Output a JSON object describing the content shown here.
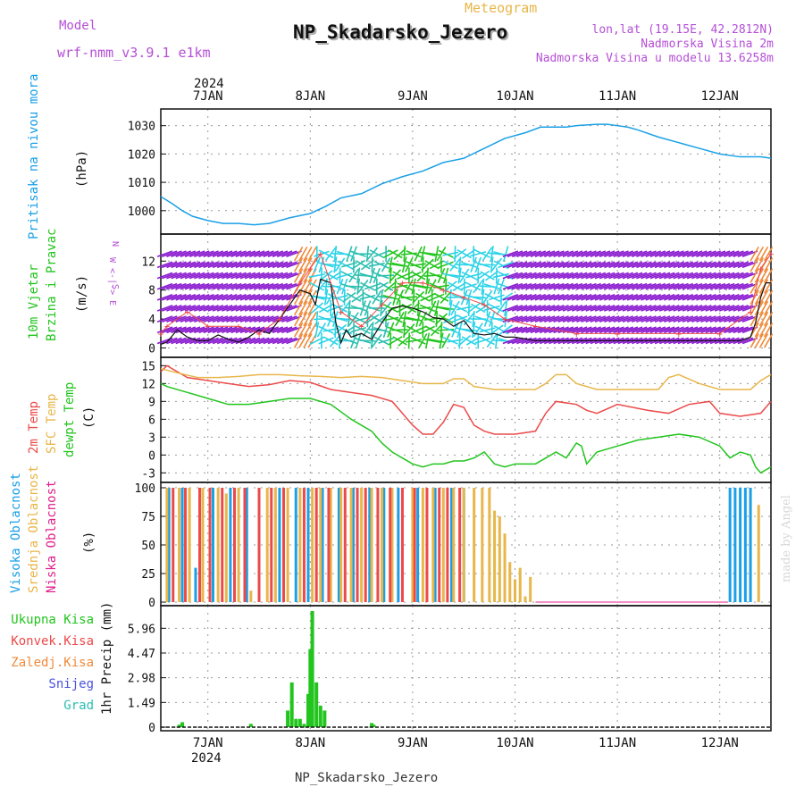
{
  "header": {
    "model_label": "Model",
    "model_value": "wrf-nmm_v3.9.1 e1km",
    "meteogram": "Meteogram",
    "station": "NP_Skadarsko_Jezero",
    "coords": "lon,lat (19.15E, 42.2812N)",
    "alt": "Nadmorska Visina 2m",
    "model_alt": "Nadmorska Visina u modelu 13.6258m",
    "year": "2024",
    "footer": "NP_Skadarsko_Jezero",
    "credit": "made by Angel"
  },
  "colors": {
    "purple": "#b44fd6",
    "gold": "#e8b64a",
    "pressure": "#1aa0e6",
    "green": "#22c51e",
    "red": "#ec4a4a",
    "orange": "#f08a3a",
    "blue": "#4b52e0",
    "cyan": "#2bbfb0",
    "magenta": "#e0208a",
    "darkpurple": "#8a1ad0"
  },
  "chart_data": [
    {
      "id": "pressure",
      "type": "line",
      "ylabel": [
        "Pritisak na nivou mora",
        "(hPa)"
      ],
      "yticks": [
        1000,
        1010,
        1020,
        1030
      ],
      "ylim": [
        993,
        1034
      ],
      "x_categories": [
        "7JAN",
        "8JAN",
        "9JAN",
        "10JAN",
        "11JAN",
        "12JAN"
      ],
      "xlim": [
        6.54,
        12.5
      ],
      "series": [
        {
          "x": [
            6.54,
            6.65,
            6.75,
            6.85,
            7.0,
            7.15,
            7.3,
            7.45,
            7.6,
            7.8,
            8.0,
            8.15,
            8.3,
            8.5,
            8.7,
            8.9,
            9.1,
            9.3,
            9.5,
            9.7,
            9.9,
            10.1,
            10.25,
            10.4,
            10.5,
            10.6,
            10.8,
            10.9,
            11.0,
            11.1,
            11.2,
            11.4,
            11.6,
            11.8,
            12.0,
            12.2,
            12.3,
            12.4,
            12.5
          ],
          "y": [
            1005,
            1002.5,
            1000,
            998,
            996.5,
            995.5,
            995.5,
            995,
            995.5,
            997.5,
            999,
            1001.5,
            1004.5,
            1006,
            1009.5,
            1012,
            1014,
            1017,
            1018.5,
            1022,
            1025.5,
            1027.5,
            1029.5,
            1029.5,
            1029.5,
            1030,
            1030.5,
            1030.5,
            1030,
            1029.5,
            1028.5,
            1026,
            1024,
            1022,
            1020,
            1019,
            1019,
            1019,
            1018.5
          ]
        }
      ]
    },
    {
      "id": "wind",
      "type": "line",
      "ylabel": [
        "10m Vjetar",
        "Brzina i Pravac",
        "(m/s)"
      ],
      "yticks": [
        0,
        4,
        8,
        12
      ],
      "ylim": [
        -0.8,
        15
      ],
      "legend_compass": "N",
      "legend_ew": "W <-|-> E",
      "legend_s": "S",
      "series": [
        {
          "name": "speed",
          "x": [
            6.54,
            6.6,
            6.7,
            6.8,
            6.9,
            7.0,
            7.1,
            7.2,
            7.3,
            7.4,
            7.5,
            7.6,
            7.7,
            7.8,
            7.9,
            8.0,
            8.05,
            8.1,
            8.2,
            8.25,
            8.3,
            8.35,
            8.4,
            8.5,
            8.6,
            8.7,
            8.8,
            8.9,
            9.0,
            9.1,
            9.2,
            9.3,
            9.4,
            9.5,
            9.6,
            9.7,
            9.8,
            9.9,
            10.0,
            10.2,
            10.5,
            11.0,
            11.5,
            12.0,
            12.2,
            12.3,
            12.35,
            12.4,
            12.45,
            12.5
          ],
          "y": [
            0.5,
            0.8,
            2.5,
            1.5,
            1.0,
            1.0,
            1.8,
            1.2,
            0.8,
            1.5,
            2.5,
            2.0,
            4.0,
            6.0,
            8.0,
            7.5,
            6.0,
            9.5,
            9.0,
            3.5,
            0.7,
            2.5,
            1.5,
            2.0,
            1.2,
            3.5,
            5.5,
            5.8,
            5.5,
            5.0,
            4.2,
            4.0,
            3.0,
            3.8,
            2.0,
            1.8,
            2.0,
            1.5,
            1.5,
            1.0,
            1.0,
            1.0,
            1.0,
            1.0,
            1.0,
            1.5,
            3.5,
            7.0,
            9.0,
            9.0
          ]
        },
        {
          "name": "gust",
          "x": [
            6.54,
            6.6,
            6.8,
            7.0,
            7.3,
            7.5,
            7.7,
            7.9,
            8.0,
            8.1,
            8.3,
            8.5,
            8.7,
            8.9,
            9.1,
            9.3,
            9.5,
            9.7,
            9.9,
            10.2,
            10.6,
            11.0,
            11.6,
            12.0,
            12.3,
            12.4,
            12.5
          ],
          "y": [
            2,
            3,
            5,
            3,
            3,
            2,
            4,
            9,
            11,
            13,
            5,
            3,
            6,
            9,
            9,
            8,
            7,
            6,
            4,
            3,
            2,
            2,
            2,
            2,
            5,
            11,
            13
          ]
        }
      ]
    },
    {
      "id": "temperature",
      "type": "line",
      "ylabel": [
        "2m Temp",
        "SFC Temp",
        "dewpt Temp",
        "(C)"
      ],
      "yticks": [
        -3,
        0,
        3,
        6,
        9,
        12,
        15
      ],
      "ylim": [
        -4,
        15.5
      ],
      "series": [
        {
          "name": "2m Temp",
          "x": [
            6.54,
            6.6,
            6.7,
            6.8,
            7.0,
            7.2,
            7.4,
            7.6,
            7.8,
            8.0,
            8.2,
            8.4,
            8.6,
            8.8,
            8.9,
            9.0,
            9.1,
            9.2,
            9.3,
            9.4,
            9.5,
            9.6,
            9.7,
            9.8,
            9.9,
            10.0,
            10.2,
            10.3,
            10.4,
            10.6,
            10.7,
            10.8,
            11.0,
            11.3,
            11.5,
            11.7,
            11.9,
            12.0,
            12.2,
            12.4,
            12.5
          ],
          "y": [
            14,
            15,
            14,
            13,
            12.5,
            12,
            11.5,
            11.8,
            12.5,
            12.2,
            11.0,
            10.5,
            10.0,
            9.0,
            7.0,
            5.0,
            3.5,
            3.5,
            5.5,
            8.5,
            8.0,
            5.0,
            4.0,
            3.5,
            3.5,
            3.5,
            4.0,
            7.0,
            9.0,
            8.5,
            7.5,
            7.0,
            8.5,
            7.5,
            7.0,
            8.5,
            9.0,
            7.0,
            6.5,
            7.0,
            9.0
          ]
        },
        {
          "name": "SFC Temp",
          "x": [
            6.54,
            6.7,
            6.9,
            7.1,
            7.3,
            7.5,
            7.7,
            7.9,
            8.1,
            8.3,
            8.5,
            8.7,
            8.9,
            9.1,
            9.3,
            9.4,
            9.5,
            9.6,
            9.8,
            10.0,
            10.2,
            10.3,
            10.4,
            10.5,
            10.6,
            10.8,
            11.0,
            11.2,
            11.4,
            11.5,
            11.6,
            11.8,
            12.0,
            12.2,
            12.3,
            12.4,
            12.5
          ],
          "y": [
            14.5,
            13.8,
            13.0,
            13.0,
            13.2,
            13.5,
            13.5,
            13.3,
            13.2,
            13.0,
            13.2,
            13.0,
            12.5,
            12.0,
            12.0,
            12.8,
            12.8,
            11.5,
            11.0,
            11.0,
            11.0,
            12.0,
            13.5,
            13.5,
            12.0,
            11.0,
            11.0,
            11.0,
            11.0,
            13.0,
            13.5,
            12.0,
            11.0,
            11.0,
            11.0,
            12.5,
            13.5
          ]
        },
        {
          "name": "dewpt Temp",
          "x": [
            6.54,
            6.6,
            6.8,
            7.0,
            7.2,
            7.4,
            7.6,
            7.8,
            8.0,
            8.2,
            8.4,
            8.6,
            8.7,
            8.8,
            8.9,
            9.0,
            9.1,
            9.2,
            9.3,
            9.4,
            9.5,
            9.6,
            9.7,
            9.8,
            9.9,
            10.0,
            10.2,
            10.3,
            10.4,
            10.5,
            10.6,
            10.65,
            10.7,
            10.8,
            11.0,
            11.2,
            11.4,
            11.6,
            11.8,
            12.0,
            12.1,
            12.2,
            12.3,
            12.35,
            12.4,
            12.45,
            12.5
          ],
          "y": [
            12,
            11.5,
            10.5,
            9.5,
            8.5,
            8.5,
            9.0,
            9.5,
            9.5,
            8.5,
            6.0,
            4.0,
            2.0,
            0.5,
            -0.5,
            -1.5,
            -2.0,
            -1.5,
            -1.5,
            -1.0,
            -1.0,
            -0.5,
            0.5,
            -1.5,
            -2.0,
            -1.5,
            -1.5,
            -0.5,
            0.5,
            -0.5,
            2.0,
            1.5,
            -1.5,
            0.5,
            1.5,
            2.5,
            3.0,
            3.5,
            3.0,
            1.5,
            -0.5,
            0.5,
            0.0,
            -2.0,
            -3.0,
            -2.5,
            -2.0
          ]
        }
      ]
    },
    {
      "id": "clouds",
      "type": "bar",
      "ylabel": [
        "Visoka Oblacnost",
        "Srednja Oblacnost",
        "Niska Oblacnost",
        "(%)"
      ],
      "yticks": [
        0,
        25,
        50,
        75,
        100
      ],
      "ylim": [
        0,
        100
      ],
      "series": [
        {
          "name": "Visoka Oblacnost",
          "x": [
            6.62,
            6.75,
            6.88,
            7.05,
            7.22,
            7.38,
            7.7,
            7.86,
            7.98,
            8.12,
            8.28,
            8.42,
            8.58,
            8.72,
            8.86,
            9.05,
            9.22,
            9.38,
            9.5,
            12.1,
            12.15,
            12.2,
            12.25,
            12.3
          ],
          "y": [
            100,
            100,
            30,
            100,
            100,
            100,
            100,
            100,
            100,
            100,
            100,
            100,
            100,
            100,
            100,
            100,
            100,
            100,
            100,
            100,
            100,
            100,
            100,
            100
          ]
        },
        {
          "name": "Srednja Oblacnost",
          "x": [
            6.6,
            6.72,
            6.82,
            6.95,
            7.1,
            7.18,
            7.3,
            7.42,
            7.58,
            7.66,
            7.78,
            7.9,
            8.02,
            8.1,
            8.2,
            8.3,
            8.4,
            8.5,
            8.6,
            8.7,
            8.8,
            8.9,
            9.0,
            9.1,
            9.2,
            9.3,
            9.4,
            9.5,
            9.6,
            9.68,
            9.75,
            9.8,
            9.85,
            9.9,
            9.95,
            10.0,
            10.05,
            10.1,
            10.15,
            12.38
          ],
          "y": [
            100,
            100,
            100,
            100,
            100,
            95,
            100,
            10,
            100,
            100,
            100,
            100,
            100,
            100,
            100,
            100,
            100,
            100,
            100,
            100,
            100,
            100,
            100,
            100,
            100,
            100,
            100,
            100,
            100,
            100,
            100,
            80,
            75,
            60,
            35,
            20,
            30,
            5,
            22,
            85
          ]
        },
        {
          "name": "Niska Oblacnost",
          "x": [
            6.66,
            6.78,
            6.92,
            7.02,
            7.14,
            7.26,
            7.36,
            7.5,
            7.62,
            7.74,
            7.94,
            8.06,
            8.18,
            8.34,
            8.46,
            8.54,
            8.66,
            8.78,
            8.9,
            9.02,
            9.14,
            9.26,
            9.34,
            9.46
          ],
          "y": [
            100,
            100,
            100,
            100,
            100,
            100,
            100,
            100,
            100,
            100,
            100,
            100,
            100,
            100,
            100,
            100,
            100,
            100,
            100,
            100,
            100,
            100,
            100,
            100
          ]
        }
      ]
    },
    {
      "id": "precip",
      "type": "bar",
      "ylabel": [
        "1hr Precip",
        "(mm)"
      ],
      "yticks": [
        0,
        1.49,
        2.98,
        4.47,
        5.96
      ],
      "ylim": [
        0,
        7.0
      ],
      "legend": [
        "Ukupna Kisa",
        "Konvek.Kisa",
        "Zaledj.Kisa",
        "Snijeg",
        "Grad"
      ],
      "series": [
        {
          "name": "Ukupna Kisa",
          "x": [
            6.72,
            6.75,
            7.42,
            7.78,
            7.82,
            7.86,
            7.9,
            7.94,
            7.98,
            8.0,
            8.02,
            8.06,
            8.1,
            8.14,
            8.6,
            8.62
          ],
          "y": [
            0.15,
            0.3,
            0.2,
            1.0,
            2.7,
            0.5,
            0.5,
            0.2,
            2.0,
            4.7,
            7.0,
            2.7,
            1.3,
            1.0,
            0.25,
            0.15
          ]
        }
      ]
    }
  ]
}
